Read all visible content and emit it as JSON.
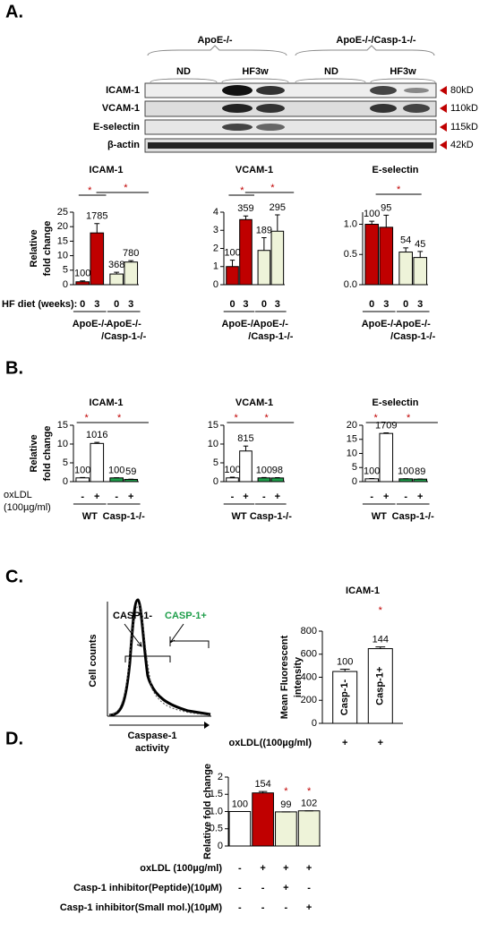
{
  "panel_a": {
    "label": "A.",
    "strain_headers": [
      "ApoE-/-",
      "ApoE-/-/Casp-1-/-"
    ],
    "diet_headers": [
      "ND",
      "HF3w",
      "ND",
      "HF3w"
    ],
    "blot_rows": [
      "ICAM-1",
      "VCAM-1",
      "E-selectin",
      "β-actin"
    ],
    "sizes": [
      "80kD",
      "110kD",
      "115kD",
      "42kD"
    ],
    "x_row_label": "HF diet (weeks):"
  },
  "panel_b": {
    "label": "B.",
    "x_row_label": [
      "oxLDL",
      "(100µg/ml)"
    ]
  },
  "panel_c": {
    "label": "C.",
    "gates": [
      "CASP-1-",
      "CASP-1+"
    ],
    "ylabel": "Cell counts",
    "xlabel": [
      "Caspase-1",
      "activity"
    ]
  },
  "panel_d": {
    "label": "D."
  },
  "chart_data": [
    {
      "type": "bar",
      "title": "ICAM-1",
      "ylabel": [
        "Relative",
        "fold change"
      ],
      "categories": [
        "0",
        "3",
        "0",
        "3"
      ],
      "groups": [
        [
          "ApoE-/-"
        ],
        [
          "ApoE-/-",
          "/Casp-1-/-"
        ]
      ],
      "values": [
        1.0,
        17.85,
        3.68,
        7.8
      ],
      "value_labels": [
        "100",
        "1785",
        "368",
        "780"
      ],
      "errors": [
        0.3,
        3.2,
        0.6,
        0.5
      ],
      "colors": [
        "#c00000",
        "#c00000",
        "#eef3d9",
        "#eef3d9"
      ],
      "ylim": [
        0,
        25
      ],
      "yticks": [
        0,
        5,
        10,
        15,
        20,
        25
      ],
      "significance": [
        "*",
        "*"
      ]
    },
    {
      "type": "bar",
      "title": "VCAM-1",
      "categories": [
        "0",
        "3",
        "0",
        "3"
      ],
      "groups": [
        [
          "ApoE-/-"
        ],
        [
          "ApoE-/-",
          "/Casp-1-/-"
        ]
      ],
      "values": [
        1.0,
        3.59,
        1.89,
        2.95
      ],
      "value_labels": [
        "100",
        "359",
        "189",
        "295"
      ],
      "errors": [
        0.35,
        0.2,
        0.7,
        0.9
      ],
      "colors": [
        "#c00000",
        "#c00000",
        "#eef3d9",
        "#eef3d9"
      ],
      "ylim": [
        0,
        4
      ],
      "yticks": [
        0,
        1,
        2,
        3,
        4
      ],
      "significance": [
        "*",
        "*"
      ]
    },
    {
      "type": "bar",
      "title": "E-selectin",
      "categories": [
        "0",
        "3",
        "0",
        "3"
      ],
      "groups": [
        [
          "ApoE-/-"
        ],
        [
          "ApoE-/-",
          "/Casp-1-/-"
        ]
      ],
      "values": [
        1.0,
        0.95,
        0.54,
        0.45
      ],
      "value_labels": [
        "100",
        "95",
        "54",
        "45"
      ],
      "errors": [
        0.05,
        0.2,
        0.07,
        0.1
      ],
      "colors": [
        "#c00000",
        "#c00000",
        "#eef3d9",
        "#eef3d9"
      ],
      "ylim": [
        0,
        1.2
      ],
      "yticks": [
        {
          "value": 0,
          "label": "0.0"
        },
        0.5,
        {
          "value": 1,
          "label": "1.0"
        }
      ],
      "significance": [
        "*"
      ]
    },
    {
      "type": "bar",
      "title": "ICAM-1",
      "ylabel": [
        "Relative",
        "fold change"
      ],
      "categories": [
        "-",
        "+",
        "-",
        "+"
      ],
      "groups": [
        [
          "WT"
        ],
        [
          "Casp-1-/-"
        ]
      ],
      "values": [
        1.0,
        10.16,
        1.0,
        0.59
      ],
      "value_labels": [
        "100",
        "1016",
        "100",
        "59"
      ],
      "errors": [
        0.1,
        0.3,
        0.05,
        0.05
      ],
      "colors": [
        "#ffffff",
        "#ffffff",
        "#1e9e4a",
        "#1e9e4a"
      ],
      "ylim": [
        0,
        15
      ],
      "yticks": [
        0,
        5,
        10,
        15
      ],
      "significance": [
        "*",
        "*"
      ]
    },
    {
      "type": "bar",
      "title": "VCAM-1",
      "categories": [
        "-",
        "+",
        "-",
        "+"
      ],
      "groups": [
        [
          "WT"
        ],
        [
          "Casp-1-/-"
        ]
      ],
      "values": [
        1.0,
        8.15,
        1.0,
        0.98
      ],
      "value_labels": [
        "100",
        "815",
        "100",
        "98"
      ],
      "errors": [
        0.2,
        1.3,
        0.1,
        0.1
      ],
      "colors": [
        "#ffffff",
        "#ffffff",
        "#1e9e4a",
        "#1e9e4a"
      ],
      "ylim": [
        0,
        15
      ],
      "yticks": [
        0,
        5,
        10,
        15
      ],
      "significance": [
        "*",
        "*"
      ]
    },
    {
      "type": "bar",
      "title": "E-selectin",
      "categories": [
        "-",
        "+",
        "-",
        "+"
      ],
      "groups": [
        [
          "WT"
        ],
        [
          "Casp-1-/-"
        ]
      ],
      "values": [
        1.0,
        17.09,
        1.0,
        0.89
      ],
      "value_labels": [
        "100",
        "1709",
        "100",
        "89"
      ],
      "errors": [
        0.1,
        0.2,
        0.05,
        0.05
      ],
      "colors": [
        "#ffffff",
        "#ffffff",
        "#1e9e4a",
        "#1e9e4a"
      ],
      "ylim": [
        0,
        20
      ],
      "yticks": [
        0,
        5,
        10,
        15,
        20
      ],
      "significance": [
        "*",
        "*"
      ]
    },
    {
      "type": "bar",
      "title": "ICAM-1",
      "ylabel": [
        "Mean Fluorescent",
        "intensity"
      ],
      "categories": [
        "Casp-1-",
        "Casp-1+"
      ],
      "values": [
        450,
        648
      ],
      "percent_of_control": [
        100,
        144
      ],
      "errors": [
        20,
        15
      ],
      "colors": [
        "#ffffff",
        "#ffffff"
      ],
      "ylim": [
        0,
        800
      ],
      "yticks": [
        0,
        200,
        400,
        600,
        800
      ],
      "significance": [
        "*"
      ],
      "treatments": [
        {
          "name": "oxLDL((100µg/ml)",
          "marks": [
            "+",
            "+"
          ]
        }
      ]
    },
    {
      "type": "bar",
      "ylabel": [
        "Relative fold change"
      ],
      "values": [
        1.0,
        1.54,
        0.99,
        1.02
      ],
      "value_labels": [
        "100",
        "154",
        "99",
        "102"
      ],
      "errors": [
        0,
        0.04,
        0,
        0
      ],
      "colors": [
        "#ffffff",
        "#c00000",
        "#eef3d9",
        "#eef3d9"
      ],
      "ylim": [
        0,
        2
      ],
      "yticks": [
        0,
        0.5,
        {
          "value": 1,
          "label": "1.0"
        },
        1.5,
        2
      ],
      "significance": [
        "*",
        "*"
      ],
      "treatments": [
        {
          "name": "oxLDL (100µg/ml)",
          "marks": [
            "-",
            "+",
            "+",
            "+"
          ]
        },
        {
          "name": "Casp-1 inhibitor(Peptide)(10µM)",
          "marks": [
            "-",
            "-",
            "+",
            "-"
          ]
        },
        {
          "name": "Casp-1 inhibitor(Small mol.)(10µM)",
          "marks": [
            "-",
            "-",
            "-",
            "+"
          ]
        }
      ]
    }
  ]
}
